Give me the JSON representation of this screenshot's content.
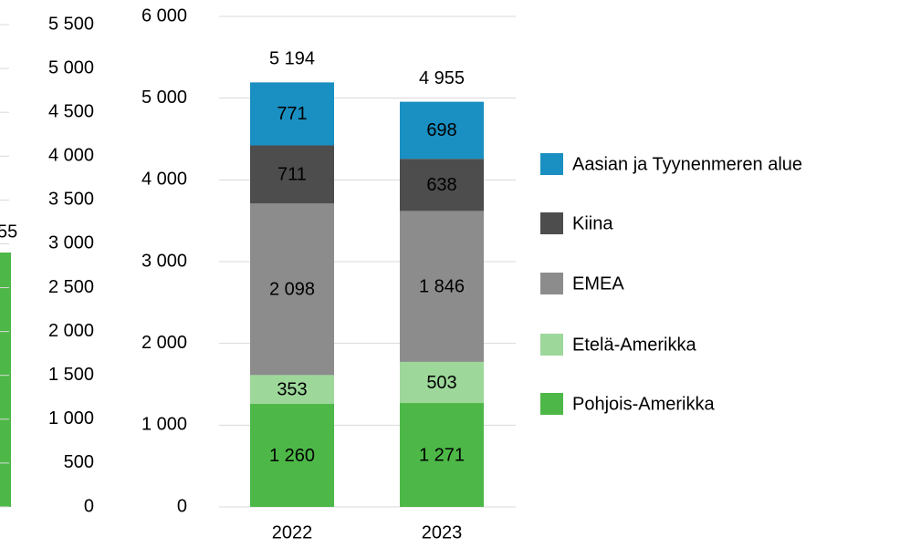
{
  "chart_data": [
    {
      "type": "bar-cropped",
      "ylim": [
        0,
        5500
      ],
      "yticks": [
        0,
        500,
        {
          "value": 1000,
          "label": "1 000"
        },
        {
          "value": 1500,
          "label": "1 500"
        },
        {
          "value": 2000,
          "label": "2 000"
        },
        {
          "value": 2500,
          "label": "2 500"
        },
        {
          "value": 3000,
          "label": "3 000"
        },
        {
          "value": 3500,
          "label": "3 500"
        },
        {
          "value": 4000,
          "label": "4 000"
        },
        {
          "value": 4500,
          "label": "4 500"
        },
        {
          "value": 5000,
          "label": "5 000"
        },
        {
          "value": 5500,
          "label": "5 500"
        }
      ],
      "annotations": [
        "55"
      ]
    },
    {
      "type": "stacked-bar",
      "categories": [
        "2022",
        "2023"
      ],
      "ylim": [
        0,
        6000
      ],
      "yticks": [
        0,
        {
          "value": 1000,
          "label": "1 000"
        },
        {
          "value": 2000,
          "label": "2 000"
        },
        {
          "value": 3000,
          "label": "3 000"
        },
        {
          "value": 4000,
          "label": "4 000"
        },
        {
          "value": 5000,
          "label": "5 000"
        },
        {
          "value": 6000,
          "label": "6 000"
        }
      ],
      "grid": true,
      "series": [
        {
          "name": "Pohjois-Amerikka",
          "color": "#4db848",
          "values": [
            1260,
            1271
          ],
          "value_labels": [
            "1 260",
            "1 271"
          ]
        },
        {
          "name": "Etelä-Amerikka",
          "color": "#9dd89a",
          "values": [
            353,
            503
          ]
        },
        {
          "name": "EMEA",
          "color": "#8c8c8c",
          "values": [
            2098,
            1846
          ],
          "value_labels": [
            "2 098",
            "1 846"
          ]
        },
        {
          "name": "Kiina",
          "color": "#4d4d4d",
          "values": [
            711,
            638
          ]
        },
        {
          "name": "Aasian ja Tyynenmeren alue",
          "color": "#1a8fc1",
          "values": [
            771,
            698
          ]
        }
      ],
      "totals": [
        5194,
        4955
      ],
      "totals_labels": [
        "5 194",
        "4 955"
      ]
    }
  ]
}
